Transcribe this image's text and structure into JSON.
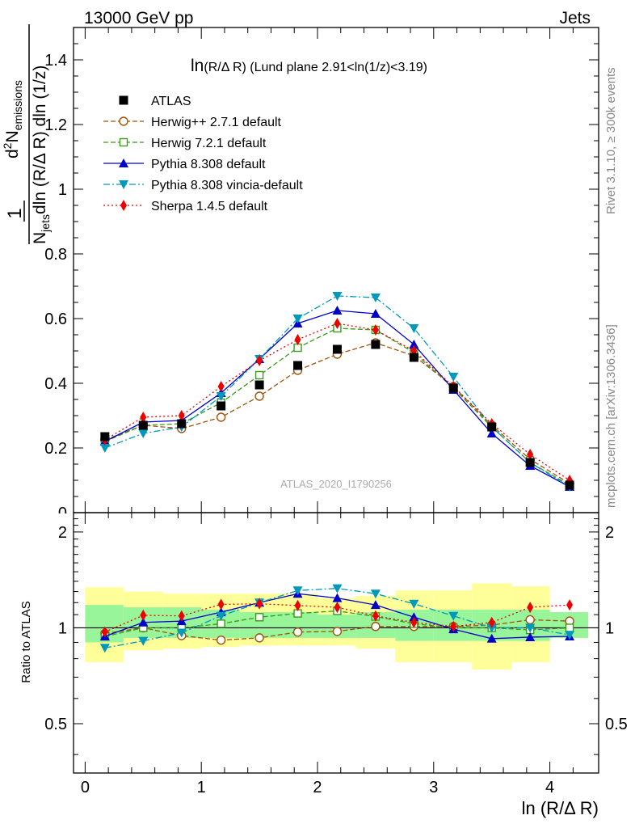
{
  "header": {
    "left": "13000 GeV pp",
    "right": "Jets"
  },
  "plot_title": {
    "main": "ln",
    "small": "(R/Δ R)",
    "rest": " (Lund plane 2.91<ln(1/z)<3.19)"
  },
  "watermark": "ATLAS_2020_I1790256",
  "side_text": {
    "rivet": "Rivet 3.1.10, ≥ 300k events",
    "mcplots": "mcplots.cern.ch [arXiv:1306.3436]"
  },
  "ylabel_main": {
    "one": "1",
    "n": "N",
    "jets": "jets",
    "denom_rest": "dln (R/Δ R) dln (1/z)",
    "d2": "d",
    "two": "2",
    "nem": "N",
    "emissions": "emissions"
  },
  "ylabel_ratio": "Ratio to ATLAS",
  "xlabel": "ln (R/Δ R)",
  "colors": {
    "atlas": "#000000",
    "herwigpp": "#a0520a",
    "herwig7": "#3a9a1a",
    "pythia": "#0000cc",
    "vincia": "#0099bb",
    "sherpa": "#ee0000",
    "band_inner": "#99f599",
    "band_outer": "#ffff99"
  },
  "chart_data": [
    {
      "type": "scatter",
      "panel": "main",
      "x": [
        0.17,
        0.5,
        0.83,
        1.17,
        1.5,
        1.83,
        2.17,
        2.5,
        2.83,
        3.17,
        3.5,
        3.83,
        4.17
      ],
      "xlim": [
        -0.1,
        4.42
      ],
      "ylim": [
        0,
        1.5
      ],
      "yticks": [
        0.2,
        0.4,
        0.6,
        0.8,
        1,
        1.2,
        1.4
      ],
      "ytick_labels": [
        "0.2",
        "0.4",
        "0.6",
        "0.8",
        "1",
        "1.2",
        "1.4"
      ],
      "extra_ytick_label": "0",
      "legend_position": "top-left",
      "series": [
        {
          "key": "atlas",
          "name": "ATLAS",
          "marker": "square",
          "line": "none",
          "values": [
            0.235,
            0.27,
            0.275,
            0.33,
            0.395,
            0.455,
            0.505,
            0.52,
            0.48,
            0.385,
            0.265,
            0.155,
            0.085
          ]
        },
        {
          "key": "herwigpp",
          "name": "Herwig++ 2.7.1 default",
          "marker": "circle-open",
          "line": "dashed",
          "values": [
            0.225,
            0.27,
            0.26,
            0.295,
            0.36,
            0.44,
            0.49,
            0.525,
            0.485,
            0.39,
            0.27,
            0.165,
            0.09
          ]
        },
        {
          "key": "herwig7",
          "name": "Herwig 7.2.1 default",
          "marker": "square-open",
          "line": "dashed",
          "values": [
            0.22,
            0.27,
            0.275,
            0.34,
            0.425,
            0.51,
            0.57,
            0.565,
            0.495,
            0.385,
            0.265,
            0.155,
            0.085
          ]
        },
        {
          "key": "pythia",
          "name": "Pythia 8.308 default",
          "marker": "triangle-up",
          "line": "solid",
          "values": [
            0.22,
            0.28,
            0.285,
            0.37,
            0.475,
            0.585,
            0.625,
            0.615,
            0.52,
            0.38,
            0.245,
            0.145,
            0.08
          ]
        },
        {
          "key": "vincia",
          "name": "Pythia 8.308 vincia-default",
          "marker": "triangle-down",
          "line": "dashdot",
          "values": [
            0.2,
            0.245,
            0.265,
            0.36,
            0.475,
            0.6,
            0.67,
            0.665,
            0.57,
            0.42,
            0.265,
            0.155,
            0.08
          ]
        },
        {
          "key": "sherpa",
          "name": "Sherpa 1.4.5 default",
          "marker": "diamond",
          "line": "dotted",
          "values": [
            0.225,
            0.295,
            0.3,
            0.39,
            0.47,
            0.535,
            0.585,
            0.565,
            0.5,
            0.39,
            0.275,
            0.18,
            0.1
          ]
        }
      ]
    },
    {
      "type": "scatter",
      "panel": "ratio",
      "x": [
        0.17,
        0.5,
        0.83,
        1.17,
        1.5,
        1.83,
        2.17,
        2.5,
        2.83,
        3.17,
        3.5,
        3.83,
        4.17
      ],
      "xlim": [
        -0.1,
        4.42
      ],
      "xticks": [
        0,
        1,
        2,
        3,
        4
      ],
      "xtick_labels": [
        "0",
        "1",
        "2",
        "3",
        "4"
      ],
      "ylim": [
        0.35,
        2.3
      ],
      "yticks": [
        0.5,
        1,
        2
      ],
      "ytick_labels": [
        "0.5",
        "1",
        "2"
      ],
      "reference_line": 1,
      "bands": {
        "edges": [
          0,
          0.33,
          0.67,
          1.0,
          1.33,
          1.67,
          2.0,
          2.33,
          2.67,
          3.0,
          3.33,
          3.67,
          4.0,
          4.33
        ],
        "inner_low": [
          0.9,
          0.93,
          0.93,
          0.93,
          0.93,
          0.93,
          0.93,
          0.93,
          0.91,
          0.91,
          0.91,
          0.91,
          0.93
        ],
        "inner_high": [
          1.18,
          1.16,
          1.16,
          1.14,
          1.12,
          1.12,
          1.1,
          1.12,
          1.14,
          1.14,
          1.14,
          1.14,
          1.12
        ],
        "outer_low": [
          0.78,
          0.85,
          0.86,
          0.87,
          0.88,
          0.88,
          0.88,
          0.86,
          0.78,
          0.78,
          0.74,
          0.78,
          0.93
        ],
        "outer_high": [
          1.34,
          1.3,
          1.28,
          1.28,
          1.28,
          1.28,
          1.24,
          1.26,
          1.31,
          1.31,
          1.38,
          1.35,
          1.12
        ]
      },
      "series": [
        {
          "key": "herwigpp",
          "name": "Herwig++ 2.7.1 default",
          "values": [
            0.96,
            1.0,
            0.945,
            0.915,
            0.93,
            0.97,
            0.975,
            1.01,
            1.01,
            1.01,
            1.02,
            1.06,
            1.05
          ]
        },
        {
          "key": "herwig7",
          "name": "Herwig 7.2.1 default",
          "values": [
            0.94,
            1.0,
            1.0,
            1.03,
            1.08,
            1.11,
            1.13,
            1.085,
            1.03,
            1.0,
            1.0,
            0.985,
            1.0
          ]
        },
        {
          "key": "pythia",
          "name": "Pythia 8.308 default",
          "values": [
            0.94,
            1.04,
            1.05,
            1.12,
            1.2,
            1.28,
            1.24,
            1.18,
            1.08,
            0.99,
            0.925,
            0.935,
            0.94
          ]
        },
        {
          "key": "vincia",
          "name": "Pythia 8.308 vincia-default",
          "values": [
            0.865,
            0.91,
            0.965,
            1.09,
            1.2,
            1.31,
            1.33,
            1.28,
            1.19,
            1.09,
            1.0,
            1.0,
            0.95
          ]
        },
        {
          "key": "sherpa",
          "name": "Sherpa 1.4.5 default",
          "values": [
            0.97,
            1.095,
            1.09,
            1.185,
            1.19,
            1.175,
            1.16,
            1.09,
            1.04,
            1.01,
            1.04,
            1.16,
            1.18
          ]
        }
      ]
    }
  ]
}
